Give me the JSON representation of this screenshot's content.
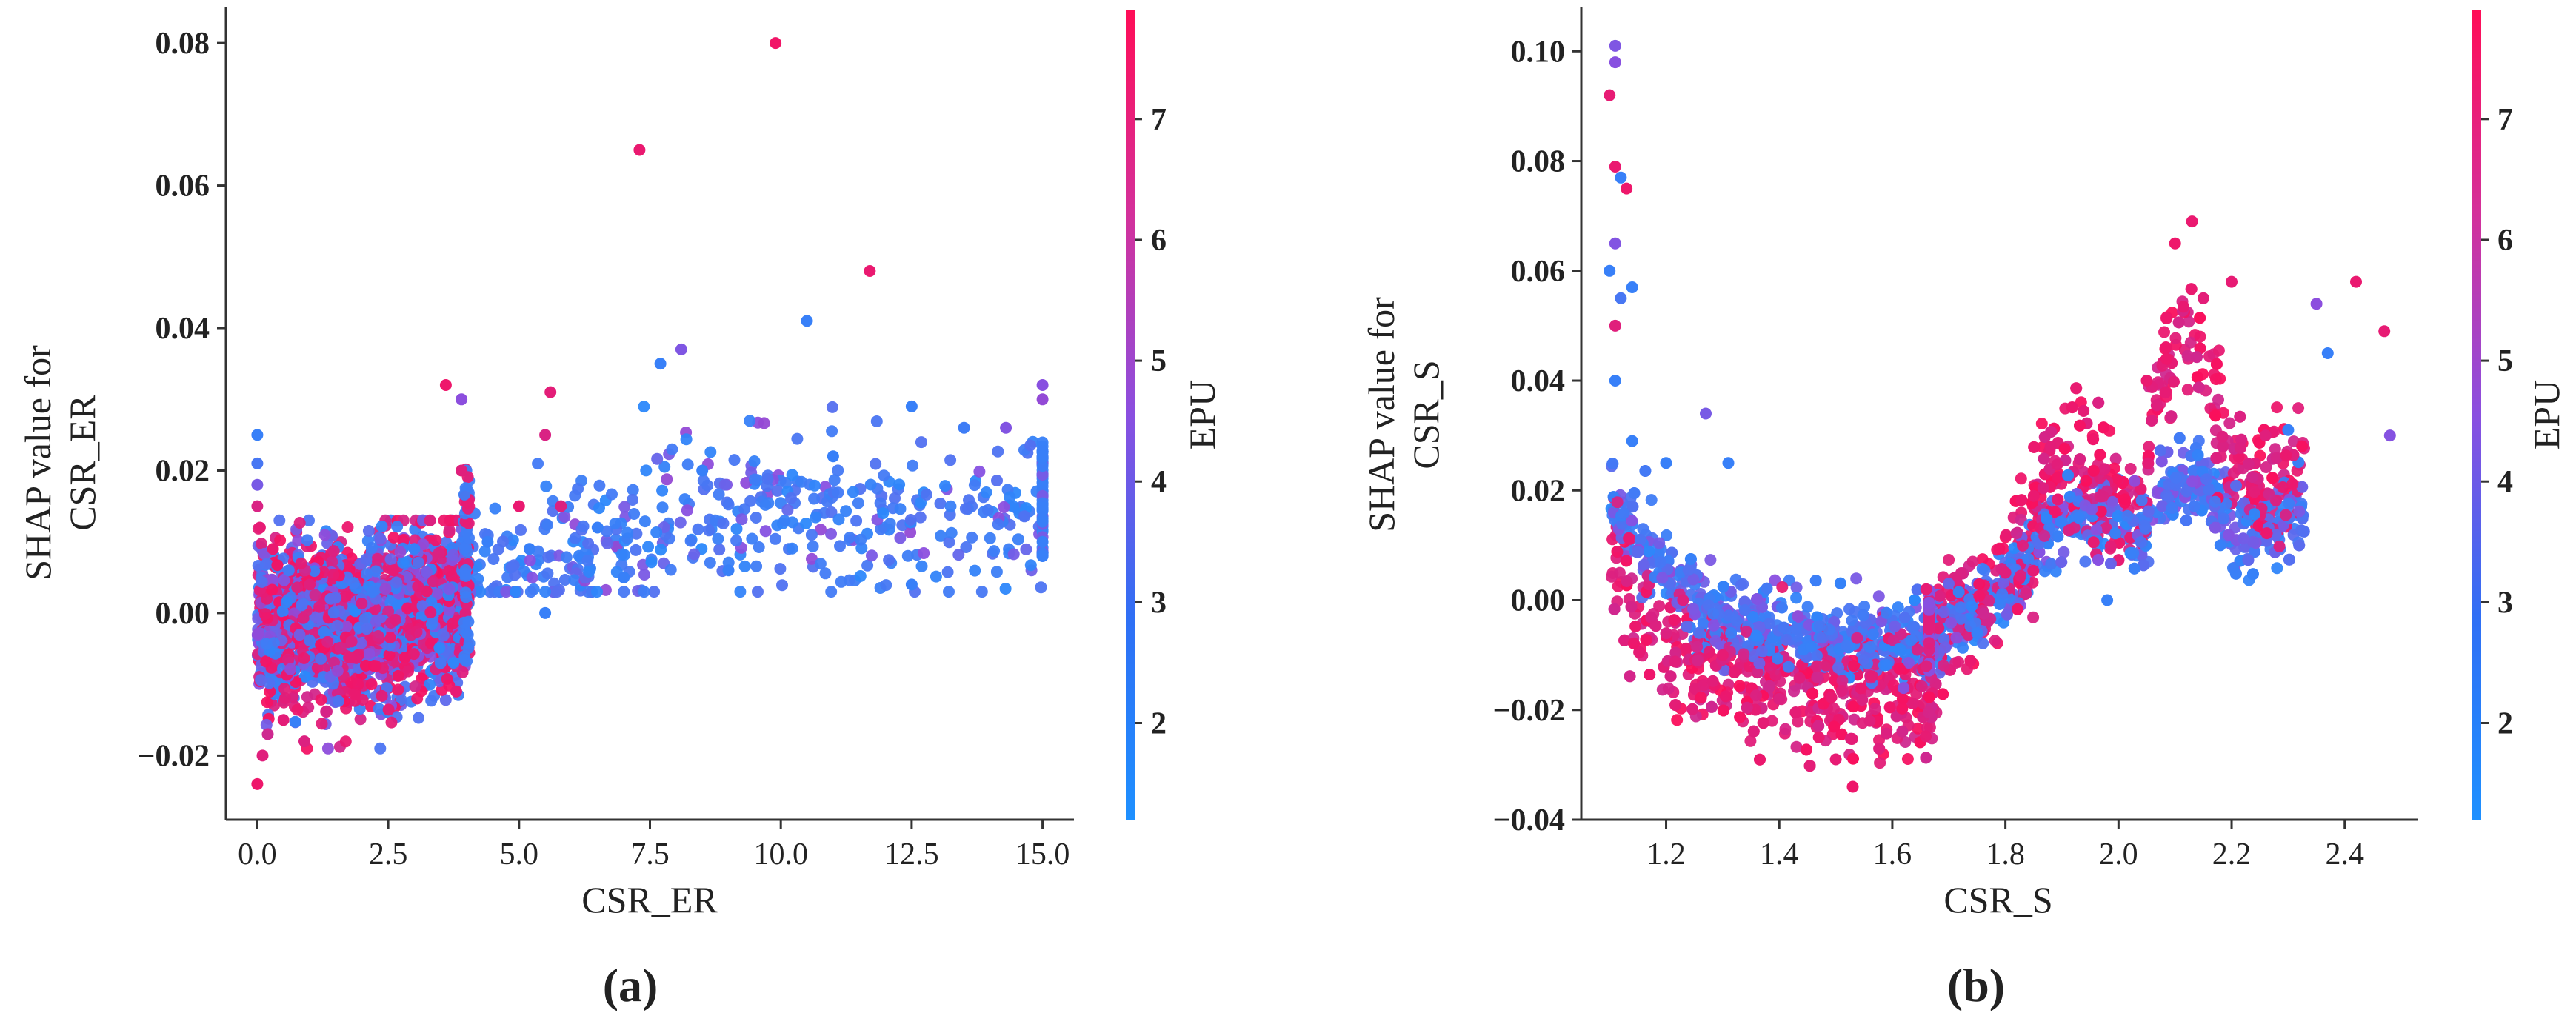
{
  "chart_data": [
    {
      "type": "scatter",
      "panel_label": "(a)",
      "xlabel": "CSR_ER",
      "ylabel_lines": [
        "SHAP value for",
        "CSR_ER"
      ],
      "xlim": [
        -0.6,
        15.6
      ],
      "ylim": [
        -0.029,
        0.085
      ],
      "xticks": [
        0.0,
        2.5,
        5.0,
        7.5,
        10.0,
        12.5,
        15.0
      ],
      "xtick_labels": [
        "0.0",
        "2.5",
        "5.0",
        "7.5",
        "10.0",
        "12.5",
        "15.0"
      ],
      "yticks": [
        -0.02,
        0.0,
        0.02,
        0.04,
        0.06,
        0.08
      ],
      "ytick_labels": [
        "−0.02",
        "0.00",
        "0.02",
        "0.04",
        "0.06",
        "0.08"
      ],
      "colorbar": {
        "label": "EPU",
        "range": [
          1.2,
          7.9
        ],
        "ticks": [
          2,
          3,
          4,
          5,
          6,
          7
        ],
        "tick_labels": [
          "2",
          "3",
          "4",
          "5",
          "6",
          "7"
        ],
        "low_color": "#1e90ff",
        "mid_color": "#8a4fe0",
        "high_color": "#ff0d57"
      },
      "grid": false,
      "legend": "colorbar-right",
      "clusters": [
        {
          "x": [
            0,
            4
          ],
          "y": [
            -0.01,
            0.012
          ],
          "epu": "mixed"
        },
        {
          "x": [
            4,
            15
          ],
          "y": [
            0,
            0.025
          ],
          "epu": "low"
        }
      ],
      "points": [
        {
          "x": 0.0,
          "y": 0.025,
          "c": 2.0
        },
        {
          "x": 0.0,
          "y": 0.021,
          "c": 2.5
        },
        {
          "x": 0.0,
          "y": 0.018,
          "c": 4.0
        },
        {
          "x": 0.0,
          "y": 0.015,
          "c": 6.8
        },
        {
          "x": 0.05,
          "y": 0.012,
          "c": 7.2
        },
        {
          "x": 0.0,
          "y": -0.024,
          "c": 7.4
        },
        {
          "x": 0.1,
          "y": -0.02,
          "c": 7.0
        },
        {
          "x": 0.2,
          "y": -0.017,
          "c": 6.5
        },
        {
          "x": 0.5,
          "y": -0.015,
          "c": 7.1
        },
        {
          "x": 0.9,
          "y": -0.018,
          "c": 6.9
        },
        {
          "x": 0.3,
          "y": 0.009,
          "c": 7.3
        },
        {
          "x": 0.6,
          "y": 0.006,
          "c": 2.4
        },
        {
          "x": 1.0,
          "y": 0.004,
          "c": 7.0
        },
        {
          "x": 1.4,
          "y": 0.002,
          "c": 3.2
        },
        {
          "x": 1.8,
          "y": -0.004,
          "c": 6.8
        },
        {
          "x": 2.2,
          "y": 0.003,
          "c": 2.2
        },
        {
          "x": 2.6,
          "y": 0.006,
          "c": 7.2
        },
        {
          "x": 3.0,
          "y": 0.009,
          "c": 2.0
        },
        {
          "x": 3.3,
          "y": 0.013,
          "c": 6.9
        },
        {
          "x": 3.6,
          "y": 0.032,
          "c": 7.4
        },
        {
          "x": 3.9,
          "y": 0.03,
          "c": 4.6
        },
        {
          "x": 3.9,
          "y": 0.02,
          "c": 7.0
        },
        {
          "x": 3.8,
          "y": -0.011,
          "c": 7.2
        },
        {
          "x": 3.5,
          "y": -0.007,
          "c": 2.5
        },
        {
          "x": 4.4,
          "y": 0.01,
          "c": 2.0
        },
        {
          "x": 5.2,
          "y": 0.009,
          "c": 2.0
        },
        {
          "x": 5.0,
          "y": 0.015,
          "c": 7.3
        },
        {
          "x": 5.6,
          "y": 0.031,
          "c": 7.1
        },
        {
          "x": 5.5,
          "y": 0.025,
          "c": 6.8
        },
        {
          "x": 5.8,
          "y": 0.015,
          "c": 6.9
        },
        {
          "x": 5.5,
          "y": 0.0,
          "c": 2.0
        },
        {
          "x": 6.5,
          "y": 0.012,
          "c": 2.0
        },
        {
          "x": 7.0,
          "y": 0.005,
          "c": 2.0
        },
        {
          "x": 7.3,
          "y": 0.065,
          "c": 7.3
        },
        {
          "x": 7.7,
          "y": 0.035,
          "c": 2.0
        },
        {
          "x": 8.1,
          "y": 0.037,
          "c": 4.2
        },
        {
          "x": 8.5,
          "y": 0.02,
          "c": 2.0
        },
        {
          "x": 9.0,
          "y": 0.006,
          "c": 2.0
        },
        {
          "x": 9.9,
          "y": 0.08,
          "c": 7.5
        },
        {
          "x": 10.5,
          "y": 0.041,
          "c": 2.0
        },
        {
          "x": 11.0,
          "y": 0.022,
          "c": 2.0
        },
        {
          "x": 11.7,
          "y": 0.048,
          "c": 7.3
        },
        {
          "x": 12.5,
          "y": 0.029,
          "c": 2.0
        },
        {
          "x": 12.5,
          "y": 0.004,
          "c": 2.0
        },
        {
          "x": 13.5,
          "y": 0.026,
          "c": 2.2
        },
        {
          "x": 14.3,
          "y": 0.026,
          "c": 4.3
        },
        {
          "x": 15.0,
          "y": 0.032,
          "c": 4.5
        },
        {
          "x": 15.0,
          "y": 0.03,
          "c": 4.8
        },
        {
          "x": 15.0,
          "y": 0.022,
          "c": 2.0
        },
        {
          "x": 15.0,
          "y": 0.01,
          "c": 2.0
        },
        {
          "x": 15.0,
          "y": 0.008,
          "c": 2.0
        }
      ]
    },
    {
      "type": "scatter",
      "panel_label": "(b)",
      "xlabel": "CSR_S",
      "ylabel_lines": [
        "SHAP value for",
        "CSR_S"
      ],
      "xlim": [
        1.05,
        2.53
      ],
      "ylim": [
        -0.04,
        0.108
      ],
      "xticks": [
        1.2,
        1.4,
        1.6,
        1.8,
        2.0,
        2.2,
        2.4
      ],
      "xtick_labels": [
        "1.2",
        "1.4",
        "1.6",
        "1.8",
        "2.0",
        "2.2",
        "2.4"
      ],
      "yticks": [
        -0.04,
        -0.02,
        0.0,
        0.02,
        0.04,
        0.06,
        0.08,
        0.1
      ],
      "ytick_labels": [
        "−0.04",
        "−0.02",
        "0.00",
        "0.02",
        "0.04",
        "0.06",
        "0.08",
        "0.10"
      ],
      "colorbar": {
        "label": "EPU",
        "range": [
          1.2,
          7.9
        ],
        "ticks": [
          2,
          3,
          4,
          5,
          6,
          7
        ],
        "tick_labels": [
          "2",
          "3",
          "4",
          "5",
          "6",
          "7"
        ],
        "low_color": "#1e90ff",
        "mid_color": "#8a4fe0",
        "high_color": "#ff0d57"
      },
      "grid": false,
      "legend": "colorbar-right",
      "trend": "U-shaped: high near 1.1, minimum near 1.5, second peak near 2.1",
      "points": [
        {
          "x": 1.11,
          "y": 0.101,
          "c": 4.2
        },
        {
          "x": 1.11,
          "y": 0.098,
          "c": 4.5
        },
        {
          "x": 1.1,
          "y": 0.092,
          "c": 7.2
        },
        {
          "x": 1.11,
          "y": 0.079,
          "c": 7.3
        },
        {
          "x": 1.12,
          "y": 0.077,
          "c": 2.0
        },
        {
          "x": 1.13,
          "y": 0.075,
          "c": 7.4
        },
        {
          "x": 1.11,
          "y": 0.065,
          "c": 4.3
        },
        {
          "x": 1.1,
          "y": 0.06,
          "c": 2.0
        },
        {
          "x": 1.12,
          "y": 0.055,
          "c": 2.5
        },
        {
          "x": 1.14,
          "y": 0.057,
          "c": 2.0
        },
        {
          "x": 1.11,
          "y": 0.05,
          "c": 7.0
        },
        {
          "x": 1.11,
          "y": 0.04,
          "c": 2.0
        },
        {
          "x": 1.14,
          "y": 0.029,
          "c": 2.0
        },
        {
          "x": 1.2,
          "y": 0.025,
          "c": 2.0
        },
        {
          "x": 1.27,
          "y": 0.034,
          "c": 4.0
        },
        {
          "x": 1.31,
          "y": 0.025,
          "c": 2.0
        },
        {
          "x": 1.23,
          "y": 0.0,
          "c": 7.0
        },
        {
          "x": 1.3,
          "y": -0.01,
          "c": 7.2
        },
        {
          "x": 1.4,
          "y": -0.018,
          "c": 6.9
        },
        {
          "x": 1.47,
          "y": -0.025,
          "c": 7.3
        },
        {
          "x": 1.5,
          "y": -0.029,
          "c": 7.2
        },
        {
          "x": 1.53,
          "y": -0.034,
          "c": 7.4
        },
        {
          "x": 1.56,
          "y": -0.022,
          "c": 7.0
        },
        {
          "x": 1.62,
          "y": -0.016,
          "c": 4.5
        },
        {
          "x": 1.66,
          "y": 0.002,
          "c": 7.2
        },
        {
          "x": 1.66,
          "y": -0.012,
          "c": 6.9
        },
        {
          "x": 1.75,
          "y": -0.006,
          "c": 2.0
        },
        {
          "x": 1.8,
          "y": 0.005,
          "c": 7.0
        },
        {
          "x": 1.85,
          "y": 0.019,
          "c": 7.3
        },
        {
          "x": 1.88,
          "y": 0.028,
          "c": 7.1
        },
        {
          "x": 1.93,
          "y": 0.015,
          "c": 2.0
        },
        {
          "x": 1.98,
          "y": 0.0,
          "c": 2.0
        },
        {
          "x": 2.05,
          "y": 0.04,
          "c": 7.3
        },
        {
          "x": 2.1,
          "y": 0.065,
          "c": 7.4
        },
        {
          "x": 2.13,
          "y": 0.069,
          "c": 7.3
        },
        {
          "x": 2.15,
          "y": 0.055,
          "c": 7.1
        },
        {
          "x": 2.18,
          "y": 0.01,
          "c": 2.0
        },
        {
          "x": 2.2,
          "y": 0.058,
          "c": 7.2
        },
        {
          "x": 2.26,
          "y": 0.03,
          "c": 7.0
        },
        {
          "x": 2.3,
          "y": 0.031,
          "c": 2.0
        },
        {
          "x": 2.35,
          "y": 0.054,
          "c": 4.6
        },
        {
          "x": 2.37,
          "y": 0.045,
          "c": 2.0
        },
        {
          "x": 2.42,
          "y": 0.058,
          "c": 7.3
        },
        {
          "x": 2.47,
          "y": 0.049,
          "c": 7.2
        },
        {
          "x": 2.48,
          "y": 0.03,
          "c": 4.4
        }
      ]
    }
  ]
}
